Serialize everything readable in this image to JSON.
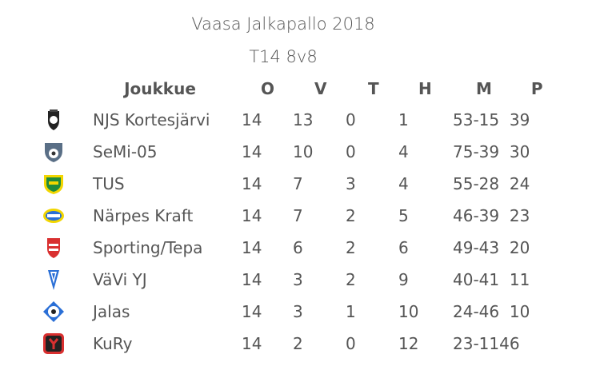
{
  "header": {
    "title": "Vaasa Jalkapallo 2018",
    "subtitle": "T14 8v8"
  },
  "table": {
    "columns": [
      "Joukkue",
      "O",
      "V",
      "T",
      "H",
      "M",
      "P"
    ],
    "rows": [
      {
        "logo": "njs-kortesjarvi-logo",
        "team": "NJS Kortesjärvi",
        "o": "14",
        "v": "13",
        "t": "0",
        "h": "1",
        "m": "53-15",
        "p": "39"
      },
      {
        "logo": "semi-05-logo",
        "team": "SeMi-05",
        "o": "14",
        "v": "10",
        "t": "0",
        "h": "4",
        "m": "75-39",
        "p": "30"
      },
      {
        "logo": "tus-logo",
        "team": "TUS",
        "o": "14",
        "v": "7",
        "t": "3",
        "h": "4",
        "m": "55-28",
        "p": "24"
      },
      {
        "logo": "narpes-kraft-logo",
        "team": "Närpes Kraft",
        "o": "14",
        "v": "7",
        "t": "2",
        "h": "5",
        "m": "46-39",
        "p": "23"
      },
      {
        "logo": "sporting-tepa-logo",
        "team": "Sporting/Tepa",
        "o": "14",
        "v": "6",
        "t": "2",
        "h": "6",
        "m": "49-43",
        "p": "20"
      },
      {
        "logo": "vavi-yj-logo",
        "team": "VäVi YJ",
        "o": "14",
        "v": "3",
        "t": "2",
        "h": "9",
        "m": "40-41",
        "p": "11"
      },
      {
        "logo": "jalas-logo",
        "team": "Jalas",
        "o": "14",
        "v": "3",
        "t": "1",
        "h": "10",
        "m": "24-46",
        "p": "10"
      },
      {
        "logo": "kury-logo",
        "team": "KuRy",
        "o": "14",
        "v": "2",
        "t": "0",
        "h": "12",
        "m": "23-114",
        "p": "6"
      }
    ]
  },
  "colors": {
    "text": "#555555",
    "tus_green": "#1f8a3c",
    "tus_yellow": "#f2d600",
    "blue": "#2a6fd6",
    "red": "#d93030"
  }
}
